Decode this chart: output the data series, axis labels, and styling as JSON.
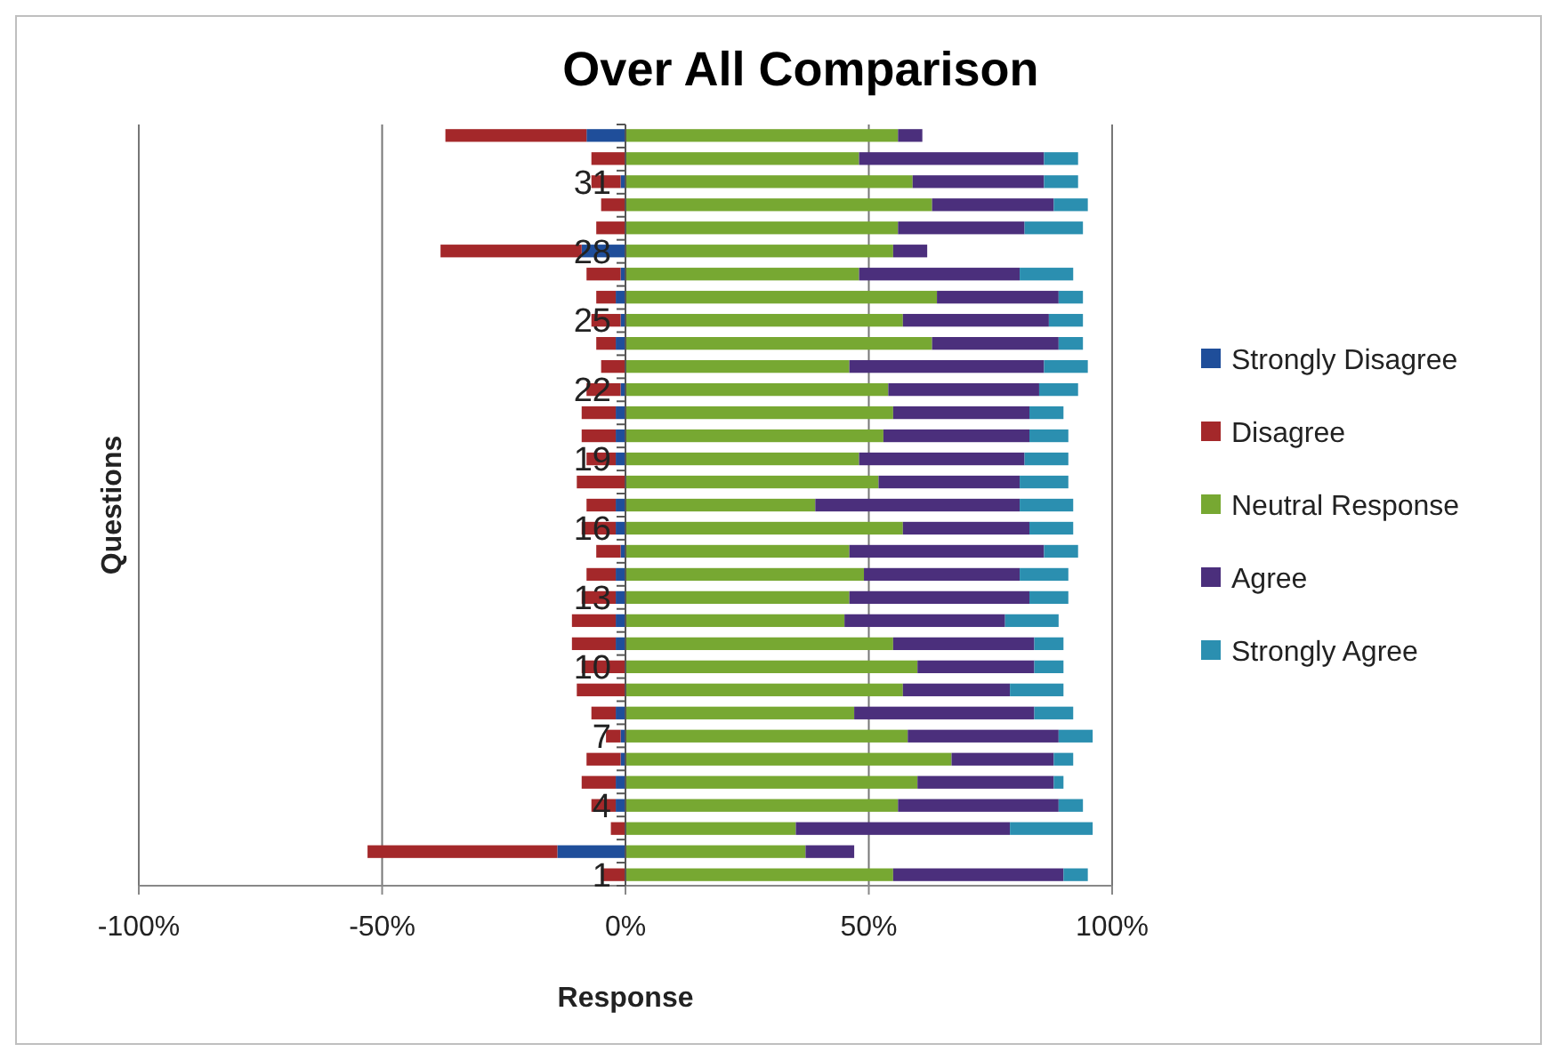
{
  "chart_data": {
    "type": "bar",
    "orientation": "horizontal",
    "stacked": true,
    "title": "Over All Comparison",
    "xlabel": "Response",
    "ylabel": "Questions",
    "categories": [
      null,
      null,
      "31",
      null,
      null,
      "28",
      null,
      null,
      "25",
      null,
      null,
      "22",
      null,
      null,
      "19",
      null,
      null,
      "16",
      null,
      null,
      "13",
      null,
      null,
      "10",
      null,
      null,
      "7",
      null,
      null,
      "4",
      null,
      null,
      "1"
    ],
    "xlim": [
      -100,
      100
    ],
    "xticks": [
      {
        "value": -100,
        "label": "-100%"
      },
      {
        "value": -50,
        "label": "-50%"
      },
      {
        "value": 0,
        "label": "0%"
      },
      {
        "value": 50,
        "label": "50%"
      },
      {
        "value": 100,
        "label": "100%"
      }
    ],
    "grid": "x",
    "legend": "right",
    "series": [
      {
        "name": "Strongly Disagree",
        "color": "#1f4e9a",
        "values": [
          -8,
          0,
          -1,
          0,
          0,
          -9,
          -1,
          -2,
          -1,
          -2,
          0,
          -1,
          -2,
          -2,
          -2,
          0,
          -2,
          -2,
          -1,
          -2,
          -2,
          -2,
          -2,
          0,
          0,
          -2,
          -1,
          -1,
          -2,
          -2,
          0,
          -14,
          0
        ]
      },
      {
        "name": "Disagree",
        "color": "#a4282a",
        "values": [
          -29,
          -7,
          -6,
          -5,
          -6,
          -29,
          -7,
          -4,
          -6,
          -4,
          -5,
          -7,
          -7,
          -7,
          -6,
          -10,
          -6,
          -7,
          -5,
          -6,
          -7,
          -9,
          -9,
          -9,
          -10,
          -5,
          -3,
          -7,
          -7,
          -5,
          -3,
          -39,
          -5
        ]
      },
      {
        "name": "Neutral Response",
        "color": "#77a832",
        "values": [
          56,
          48,
          59,
          63,
          56,
          55,
          48,
          64,
          57,
          63,
          46,
          54,
          55,
          53,
          48,
          52,
          39,
          57,
          46,
          49,
          46,
          45,
          55,
          60,
          57,
          47,
          58,
          67,
          60,
          56,
          35,
          37,
          55
        ]
      },
      {
        "name": "Agree",
        "color": "#4b2f7c",
        "values": [
          5,
          38,
          27,
          25,
          26,
          7,
          33,
          25,
          30,
          26,
          40,
          31,
          28,
          30,
          34,
          29,
          42,
          26,
          40,
          32,
          37,
          33,
          29,
          24,
          22,
          37,
          31,
          21,
          28,
          33,
          44,
          10,
          35
        ]
      },
      {
        "name": "Strongly Agree",
        "color": "#2b8fb0",
        "values": [
          0,
          7,
          7,
          7,
          12,
          0,
          11,
          5,
          7,
          5,
          9,
          8,
          7,
          8,
          9,
          10,
          11,
          9,
          7,
          10,
          8,
          11,
          6,
          6,
          11,
          8,
          7,
          4,
          2,
          5,
          17,
          0,
          5
        ]
      }
    ]
  }
}
